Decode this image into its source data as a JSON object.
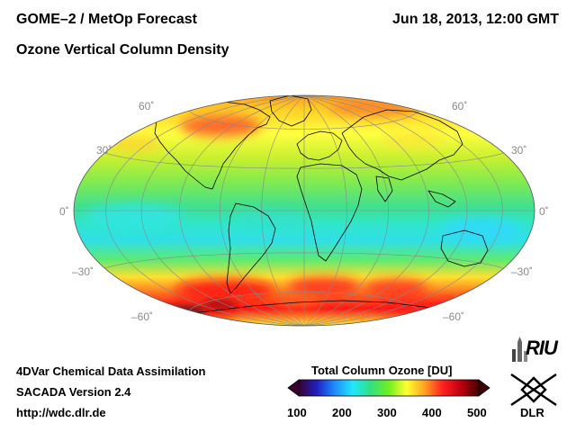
{
  "header": {
    "product": "GOME–2 / MetOp Forecast",
    "quantity": "Ozone Vertical Column Density",
    "datetime": "Jun 18, 2013, 12:00 GMT"
  },
  "map": {
    "projection": "Hammer-Aitoff",
    "lat_labels": {
      "n60": "60˚",
      "n30": "30˚",
      "eq": "0˚",
      "s30": "–30˚",
      "s60": "–60˚"
    }
  },
  "footer": {
    "line1": "4DVar Chemical Data Assimilation",
    "line2": "SACADA Version 2.4",
    "line3": "http://wdc.dlr.de"
  },
  "colorbar": {
    "title": "Total Column Ozone [DU]",
    "ticks": [
      "100",
      "200",
      "300",
      "400",
      "500"
    ],
    "stops": [
      "#3a0030",
      "#2020c0",
      "#1e8cff",
      "#20e8ff",
      "#30e080",
      "#70f020",
      "#ffff30",
      "#ffa020",
      "#ff2020",
      "#c00010",
      "#400000"
    ]
  },
  "logos": {
    "riu": "RIU",
    "dlr": "DLR"
  }
}
